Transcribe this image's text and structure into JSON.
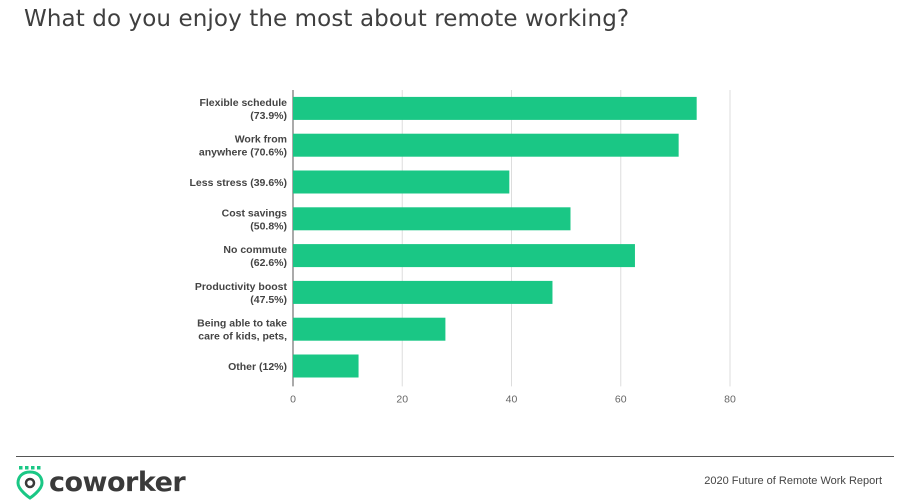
{
  "title": "What do you enjoy the most about remote working?",
  "chart_data": {
    "type": "bar",
    "orientation": "horizontal",
    "title": "What do you enjoy the most about remote working?",
    "categories": [
      [
        "Flexible schedule",
        "(73.9%)"
      ],
      [
        "Work from",
        "anywhere (70.6%)"
      ],
      [
        "Less stress (39.6%)"
      ],
      [
        "Cost savings",
        "(50.8%)"
      ],
      [
        "No commute",
        "(62.6%)"
      ],
      [
        "Productivity boost",
        "(47.5%)"
      ],
      [
        "Being able to take",
        "care of kids, pets,"
      ],
      [
        "Other (12%)"
      ]
    ],
    "values": [
      73.9,
      70.6,
      39.6,
      50.8,
      62.6,
      47.5,
      27.9,
      12
    ],
    "xticks": [
      0,
      20,
      40,
      60,
      80
    ],
    "xlim": [
      0,
      80
    ],
    "grid": true,
    "bar_color": "#1ac785"
  },
  "footer": {
    "logo_text": "coworker",
    "logo_icon": "location-pin-icon",
    "report": "2020 Future of Remote Work Report"
  },
  "colors": {
    "accent": "#1ac785",
    "logo_green": "#1ac785"
  }
}
